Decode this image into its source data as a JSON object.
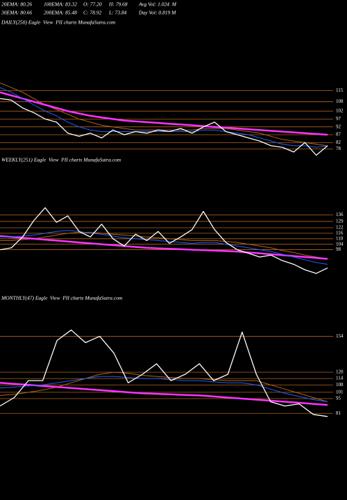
{
  "stats": [
    [
      "20EMA: 80.26",
      "100EMA: 83.32",
      "O: 77.20",
      "H: 79.68",
      "Avg Vol: 1.024  M"
    ],
    [
      "30EMA: 80.66",
      "200EMA: 85.48",
      "C: 78.92",
      "L: 73.84",
      "Day Vol: 0.819 M"
    ]
  ],
  "chart_data": [
    {
      "type": "line",
      "title": "DAILY(250) Eagle  View  PII charts MunafaSutra.com",
      "ylim": [
        72,
        155
      ],
      "yticks": [
        115,
        108,
        102,
        97,
        92,
        87,
        82,
        78
      ],
      "series": [
        {
          "color": "#b5651d",
          "values": [
            120,
            117,
            114,
            110,
            106,
            103,
            100,
            97,
            95,
            93,
            92,
            91,
            90,
            90,
            90,
            90,
            90,
            90,
            91,
            91,
            91,
            90,
            89,
            88,
            86,
            84,
            83,
            82,
            81,
            80
          ]
        },
        {
          "color": "#ff33ff",
          "values": [
            114,
            112,
            110,
            108,
            106,
            104,
            102,
            100.5,
            99,
            98,
            97,
            96,
            95.5,
            95,
            94.5,
            94,
            93.5,
            93,
            92.5,
            92,
            91.5,
            91,
            90.5,
            90,
            89.5,
            89,
            88.5,
            88,
            87.5,
            87
          ]
        },
        {
          "color": "#2060ff",
          "values": [
            117,
            114,
            110,
            106,
            102,
            99,
            95,
            92,
            90,
            89,
            89,
            89,
            89,
            89,
            89,
            89,
            89,
            89,
            90,
            90,
            89,
            88,
            87,
            85,
            83,
            81,
            80,
            80,
            79,
            80
          ]
        },
        {
          "color": "#ffffff",
          "values": [
            110,
            109,
            104,
            101,
            97,
            95,
            88,
            86,
            88,
            85,
            90,
            87,
            89,
            88,
            90,
            89,
            91,
            88,
            92,
            95,
            89,
            87,
            85,
            83,
            80,
            79,
            76,
            82,
            74,
            80
          ]
        }
      ]
    },
    {
      "type": "line",
      "title": "WEEKLY(251) Eagle  View  PII charts MunafaSutra.com",
      "ylim": [
        52,
        189
      ],
      "yticks": [
        136,
        129,
        122,
        116,
        110,
        104,
        98
      ],
      "series": [
        {
          "color": "#b5651d",
          "values": [
            108,
            108,
            109,
            110,
            112,
            114,
            116,
            117,
            117,
            116,
            115,
            114,
            113,
            112,
            111,
            110,
            109,
            108,
            108,
            108,
            107,
            106,
            104,
            102,
            100,
            97,
            95,
            92,
            90,
            88
          ]
        },
        {
          "color": "#ff33ff",
          "values": [
            113,
            112,
            111,
            110,
            109,
            108,
            107,
            106,
            105,
            104,
            103,
            102,
            101,
            100,
            99.5,
            99,
            98.5,
            98,
            97.5,
            97,
            96.5,
            96,
            95,
            94,
            93,
            92,
            91,
            90,
            89,
            88
          ]
        },
        {
          "color": "#2060ff",
          "values": [
            112,
            112,
            113,
            114,
            116,
            118,
            119,
            118,
            116,
            115,
            113,
            111,
            110,
            109,
            108,
            107,
            106,
            105,
            106,
            106,
            104,
            102,
            100,
            98,
            96,
            93,
            90,
            87,
            84,
            82
          ]
        },
        {
          "color": "#ffffff",
          "values": [
            98,
            100,
            112,
            130,
            144,
            128,
            135,
            118,
            112,
            126,
            110,
            102,
            115,
            108,
            118,
            105,
            112,
            120,
            140,
            120,
            106,
            98,
            94,
            90,
            92,
            86,
            82,
            76,
            72,
            78
          ]
        }
      ]
    },
    {
      "type": "line",
      "title": "MONTHLY(47) Eagle  View  PII charts MunafaSutra.com",
      "ylim": [
        68,
        170
      ],
      "yticks": [
        154,
        120,
        114,
        108,
        101,
        95,
        81
      ],
      "series": [
        {
          "color": "#b5651d",
          "values": [
            98,
            99,
            101,
            103,
            106,
            110,
            114,
            118,
            120,
            119,
            117,
            116,
            115,
            114,
            114,
            113,
            112,
            112,
            112,
            108,
            104,
            100,
            96,
            92
          ]
        },
        {
          "color": "#ff33ff",
          "values": [
            110,
            109,
            108,
            107,
            106,
            105,
            104,
            103,
            102,
            101,
            100,
            99.5,
            99,
            98.5,
            98,
            97,
            96,
            95,
            94,
            93,
            92,
            91,
            90,
            89
          ]
        },
        {
          "color": "#2060ff",
          "values": [
            105,
            106,
            107,
            108,
            110,
            112,
            114,
            116,
            116,
            115,
            114,
            114,
            113,
            112,
            112,
            111,
            110,
            110,
            108,
            104,
            100,
            97,
            94,
            92
          ]
        },
        {
          "color": "#ffffff",
          "values": [
            88,
            96,
            112,
            112,
            150,
            160,
            148,
            154,
            138,
            110,
            118,
            128,
            112,
            118,
            128,
            112,
            118,
            158,
            118,
            92,
            88,
            90,
            80,
            78
          ]
        }
      ]
    }
  ]
}
